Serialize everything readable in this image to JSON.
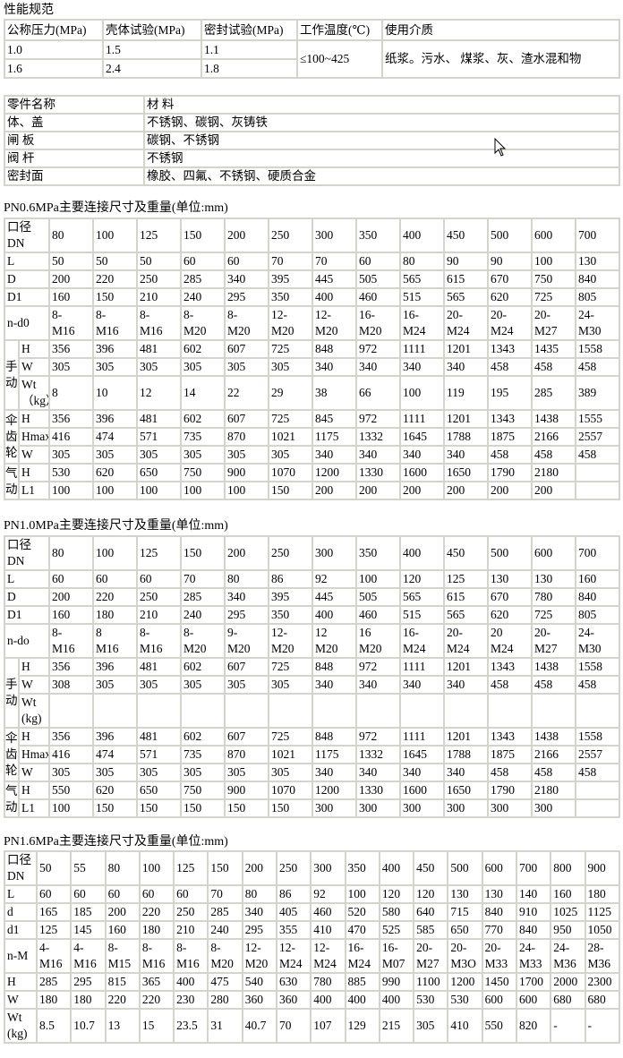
{
  "performance": {
    "title": "性能规范",
    "headers": [
      "公称压力(MPa)",
      "壳体试验(MPa)",
      "密封试验(MPa)",
      "工作温度(℃)",
      "使用介质"
    ],
    "rows": [
      [
        "1.0",
        "1.5",
        "1.1"
      ],
      [
        "1.6",
        "2.4",
        "1.8"
      ]
    ],
    "temperature": "≤100~425",
    "medium": "纸浆。污水、 煤浆、灰、渣水混和物"
  },
  "materials": {
    "headers": [
      "零件名称",
      "材 料"
    ],
    "rows": [
      [
        "体、盖",
        "不锈钢、碳钢、灰铸铁"
      ],
      [
        "闸 板",
        "碳钢、不锈钢"
      ],
      [
        "阀 杆",
        "不锈钢"
      ],
      [
        "密封面",
        "橡胶、四氟、不锈钢、硬质合金"
      ]
    ]
  },
  "tables": [
    {
      "title": "PN0.6MPa主要连接尺寸及重量(单位:mm)",
      "rows": [
        {
          "label": "口径DN",
          "values": [
            "80",
            "100",
            "125",
            "150",
            "200",
            "250",
            "300",
            "350",
            "400",
            "450",
            "500",
            "600",
            "700"
          ]
        },
        {
          "label": "L",
          "values": [
            "50",
            "50",
            "50",
            "60",
            "60",
            "70",
            "70",
            "60",
            "80",
            "90",
            "90",
            "100",
            "130"
          ]
        },
        {
          "label": "D",
          "values": [
            "200",
            "220",
            "250",
            "285",
            "340",
            "395",
            "445",
            "505",
            "565",
            "615",
            "670",
            "750",
            "840"
          ]
        },
        {
          "label": "D1",
          "values": [
            "160",
            "150",
            "210",
            "240",
            "295",
            "350",
            "400",
            "460",
            "515",
            "565",
            "620",
            "725",
            "805"
          ]
        },
        {
          "label": "n-d0",
          "values": [
            "8-M16",
            "8-M16",
            "8-M16",
            "8-M20",
            "8-M20",
            "12-M20",
            "12-M20",
            "16-M20",
            "16-M24",
            "20-M24",
            "20-M24",
            "20-M27",
            "24-M30"
          ]
        },
        {
          "group": "手动",
          "label": "H",
          "values": [
            "356",
            "396",
            "481",
            "602",
            "607",
            "725",
            "848",
            "972",
            "1111",
            "1201",
            "1343",
            "1435",
            "1558"
          ]
        },
        {
          "group": "手动",
          "label": "W",
          "values": [
            "305",
            "305",
            "305",
            "305",
            "305",
            "305",
            "340",
            "340",
            "340",
            "340",
            "458",
            "458",
            "458"
          ]
        },
        {
          "group": "手动",
          "label": "Wt （kg）",
          "values": [
            "8",
            "10",
            "12",
            "14",
            "22",
            "29",
            "38",
            "66",
            "100",
            "119",
            "195",
            "285",
            "389"
          ]
        },
        {
          "group": "伞齿轮",
          "label": "H",
          "values": [
            "356",
            "396",
            "481",
            "602",
            "607",
            "725",
            "845",
            "972",
            "1111",
            "1201",
            "1343",
            "1438",
            "1555"
          ]
        },
        {
          "group": "伞齿轮",
          "label": "Hmax",
          "values": [
            "416",
            "474",
            "571",
            "735",
            "870",
            "1021",
            "1175",
            "1332",
            "1645",
            "1788",
            "1875",
            "2166",
            "2557"
          ]
        },
        {
          "group": "伞齿轮",
          "label": "W",
          "values": [
            "305",
            "305",
            "305",
            "305",
            "305",
            "305",
            "340",
            "340",
            "340",
            "340",
            "458",
            "458",
            "458"
          ]
        },
        {
          "group": "气动",
          "label": "H",
          "values": [
            "530",
            "620",
            "650",
            "750",
            "900",
            "1070",
            "1200",
            "1330",
            "1600",
            "1650",
            "1790",
            "2180",
            ""
          ]
        },
        {
          "group": "气动",
          "label": "L1",
          "values": [
            "100",
            "100",
            "100",
            "100",
            "100",
            "150",
            "200",
            "200",
            "200",
            "200",
            "200",
            "200",
            ""
          ]
        }
      ]
    },
    {
      "title": "PN1.0MPa主要连接尺寸及重量(单位:mm)",
      "rows": [
        {
          "label": "口径DN",
          "values": [
            "80",
            "100",
            "125",
            "150",
            "200",
            "250",
            "300",
            "350",
            "400",
            "450",
            "500",
            "600",
            "700"
          ]
        },
        {
          "label": "L",
          "values": [
            "60",
            "60",
            "60",
            "70",
            "80",
            "86",
            "92",
            "100",
            "120",
            "125",
            "130",
            "130",
            "160"
          ]
        },
        {
          "label": "D",
          "values": [
            "200",
            "220",
            "250",
            "285",
            "340",
            "395",
            "445",
            "505",
            "565",
            "615",
            "670",
            "780",
            "840"
          ]
        },
        {
          "label": "D1",
          "values": [
            "160",
            "180",
            "210",
            "240",
            "295",
            "350",
            "400",
            "460",
            "515",
            "565",
            "620",
            "725",
            "805"
          ]
        },
        {
          "label": "n-do",
          "values": [
            "8-M16",
            "8 M16",
            "8-M16",
            "8-M20",
            "9-M20",
            "12-M20",
            "12 M20",
            "16 M20",
            "16-M24",
            "20-M24",
            "20 M24",
            "20-M27",
            "24-M30"
          ]
        },
        {
          "group": "手动",
          "label": "H",
          "values": [
            "356",
            "396",
            "481",
            "602",
            "607",
            "725",
            "848",
            "972",
            "1111",
            "1201",
            "1343",
            "1438",
            "1558"
          ]
        },
        {
          "group": "手动",
          "label": "W",
          "values": [
            "308",
            "305",
            "305",
            "305",
            "305",
            "305",
            "340",
            "340",
            "340",
            "340",
            "458",
            "458",
            "458"
          ]
        },
        {
          "group": "手动",
          "label": "Wt (kg)",
          "values": [
            "",
            "",
            "",
            "",
            "",
            "",
            "",
            "",
            "",
            "",
            "",
            "",
            ""
          ]
        },
        {
          "group": "伞齿轮",
          "label": "H",
          "values": [
            "356",
            "396",
            "481",
            "602",
            "607",
            "725",
            "848",
            "972",
            "1111",
            "1201",
            "1343",
            "1438",
            "1558"
          ]
        },
        {
          "group": "伞齿轮",
          "label": "Hmax",
          "values": [
            "416",
            "474",
            "571",
            "735",
            "870",
            "1021",
            "1175",
            "1332",
            "1645",
            "1788",
            "1875",
            "2166",
            "2557"
          ]
        },
        {
          "group": "伞齿轮",
          "label": "W",
          "values": [
            "305",
            "305",
            "305",
            "305",
            "305",
            "305",
            "340",
            "340",
            "340",
            "340",
            "458",
            "458",
            "458"
          ]
        },
        {
          "group": "气动",
          "label": "H",
          "values": [
            "550",
            "620",
            "650",
            "750",
            "900",
            "1070",
            "1200",
            "1330",
            "1600",
            "1650",
            "1790",
            "2180",
            ""
          ]
        },
        {
          "group": "气动",
          "label": "L1",
          "values": [
            "100",
            "150",
            "150",
            "150",
            "150",
            "150",
            "300",
            "300",
            "300",
            "300",
            "300",
            "300",
            ""
          ]
        }
      ]
    },
    {
      "title": "PN1.6MPa主要连接尺寸及重量(单位:mm)",
      "rows": [
        {
          "label": "口径DN",
          "values": [
            "50",
            "55",
            "80",
            "100",
            "125",
            "150",
            "200",
            "250",
            "300",
            "350",
            "400",
            "450",
            "500",
            "600",
            "700",
            "800",
            "900"
          ]
        },
        {
          "label": "L",
          "values": [
            "60",
            "60",
            "60",
            "60",
            "60",
            "70",
            "80",
            "86",
            "92",
            "100",
            "120",
            "120",
            "130",
            "130",
            "140",
            "160",
            "180"
          ]
        },
        {
          "label": "d",
          "values": [
            "165",
            "185",
            "200",
            "220",
            "250",
            "285",
            "340",
            "405",
            "460",
            "520",
            "580",
            "640",
            "715",
            "840",
            "910",
            "1025",
            "1125"
          ]
        },
        {
          "label": "d1",
          "values": [
            "125",
            "145",
            "160",
            "180",
            "210",
            "240",
            "295",
            "355",
            "410",
            "470",
            "525",
            "585",
            "650",
            "770",
            "840",
            "950",
            "1050"
          ]
        },
        {
          "label": "n-M",
          "values": [
            "4-M16",
            "4-M16",
            "8-M15",
            "8-M16",
            "8-M16",
            "8-M20",
            "12-M20",
            "12-M24",
            "12-M24",
            "16-M24",
            "16-M07",
            "20-M27",
            "20-M3O",
            "20-M33",
            "24-M33",
            "24-M36",
            "28-M36"
          ]
        },
        {
          "label": "H",
          "values": [
            "285",
            "295",
            "815",
            "365",
            "400",
            "475",
            "540",
            "630",
            "780",
            "885",
            "990",
            "1100",
            "1200",
            "1450",
            "1700",
            "2000",
            "2300"
          ]
        },
        {
          "label": "W",
          "values": [
            "180",
            "180",
            "220",
            "220",
            "230",
            "280",
            "360",
            "360",
            "400",
            "400",
            "400",
            "530",
            "530",
            "600",
            "600",
            "680",
            "680"
          ]
        },
        {
          "label": "Wt (kg)",
          "values": [
            "8.5",
            "10.7",
            "13",
            "15",
            "23.5",
            "31",
            "40.7",
            "70",
            "107",
            "129",
            "215",
            "305",
            "410",
            "550",
            "820",
            "-",
            "-"
          ]
        }
      ]
    }
  ]
}
